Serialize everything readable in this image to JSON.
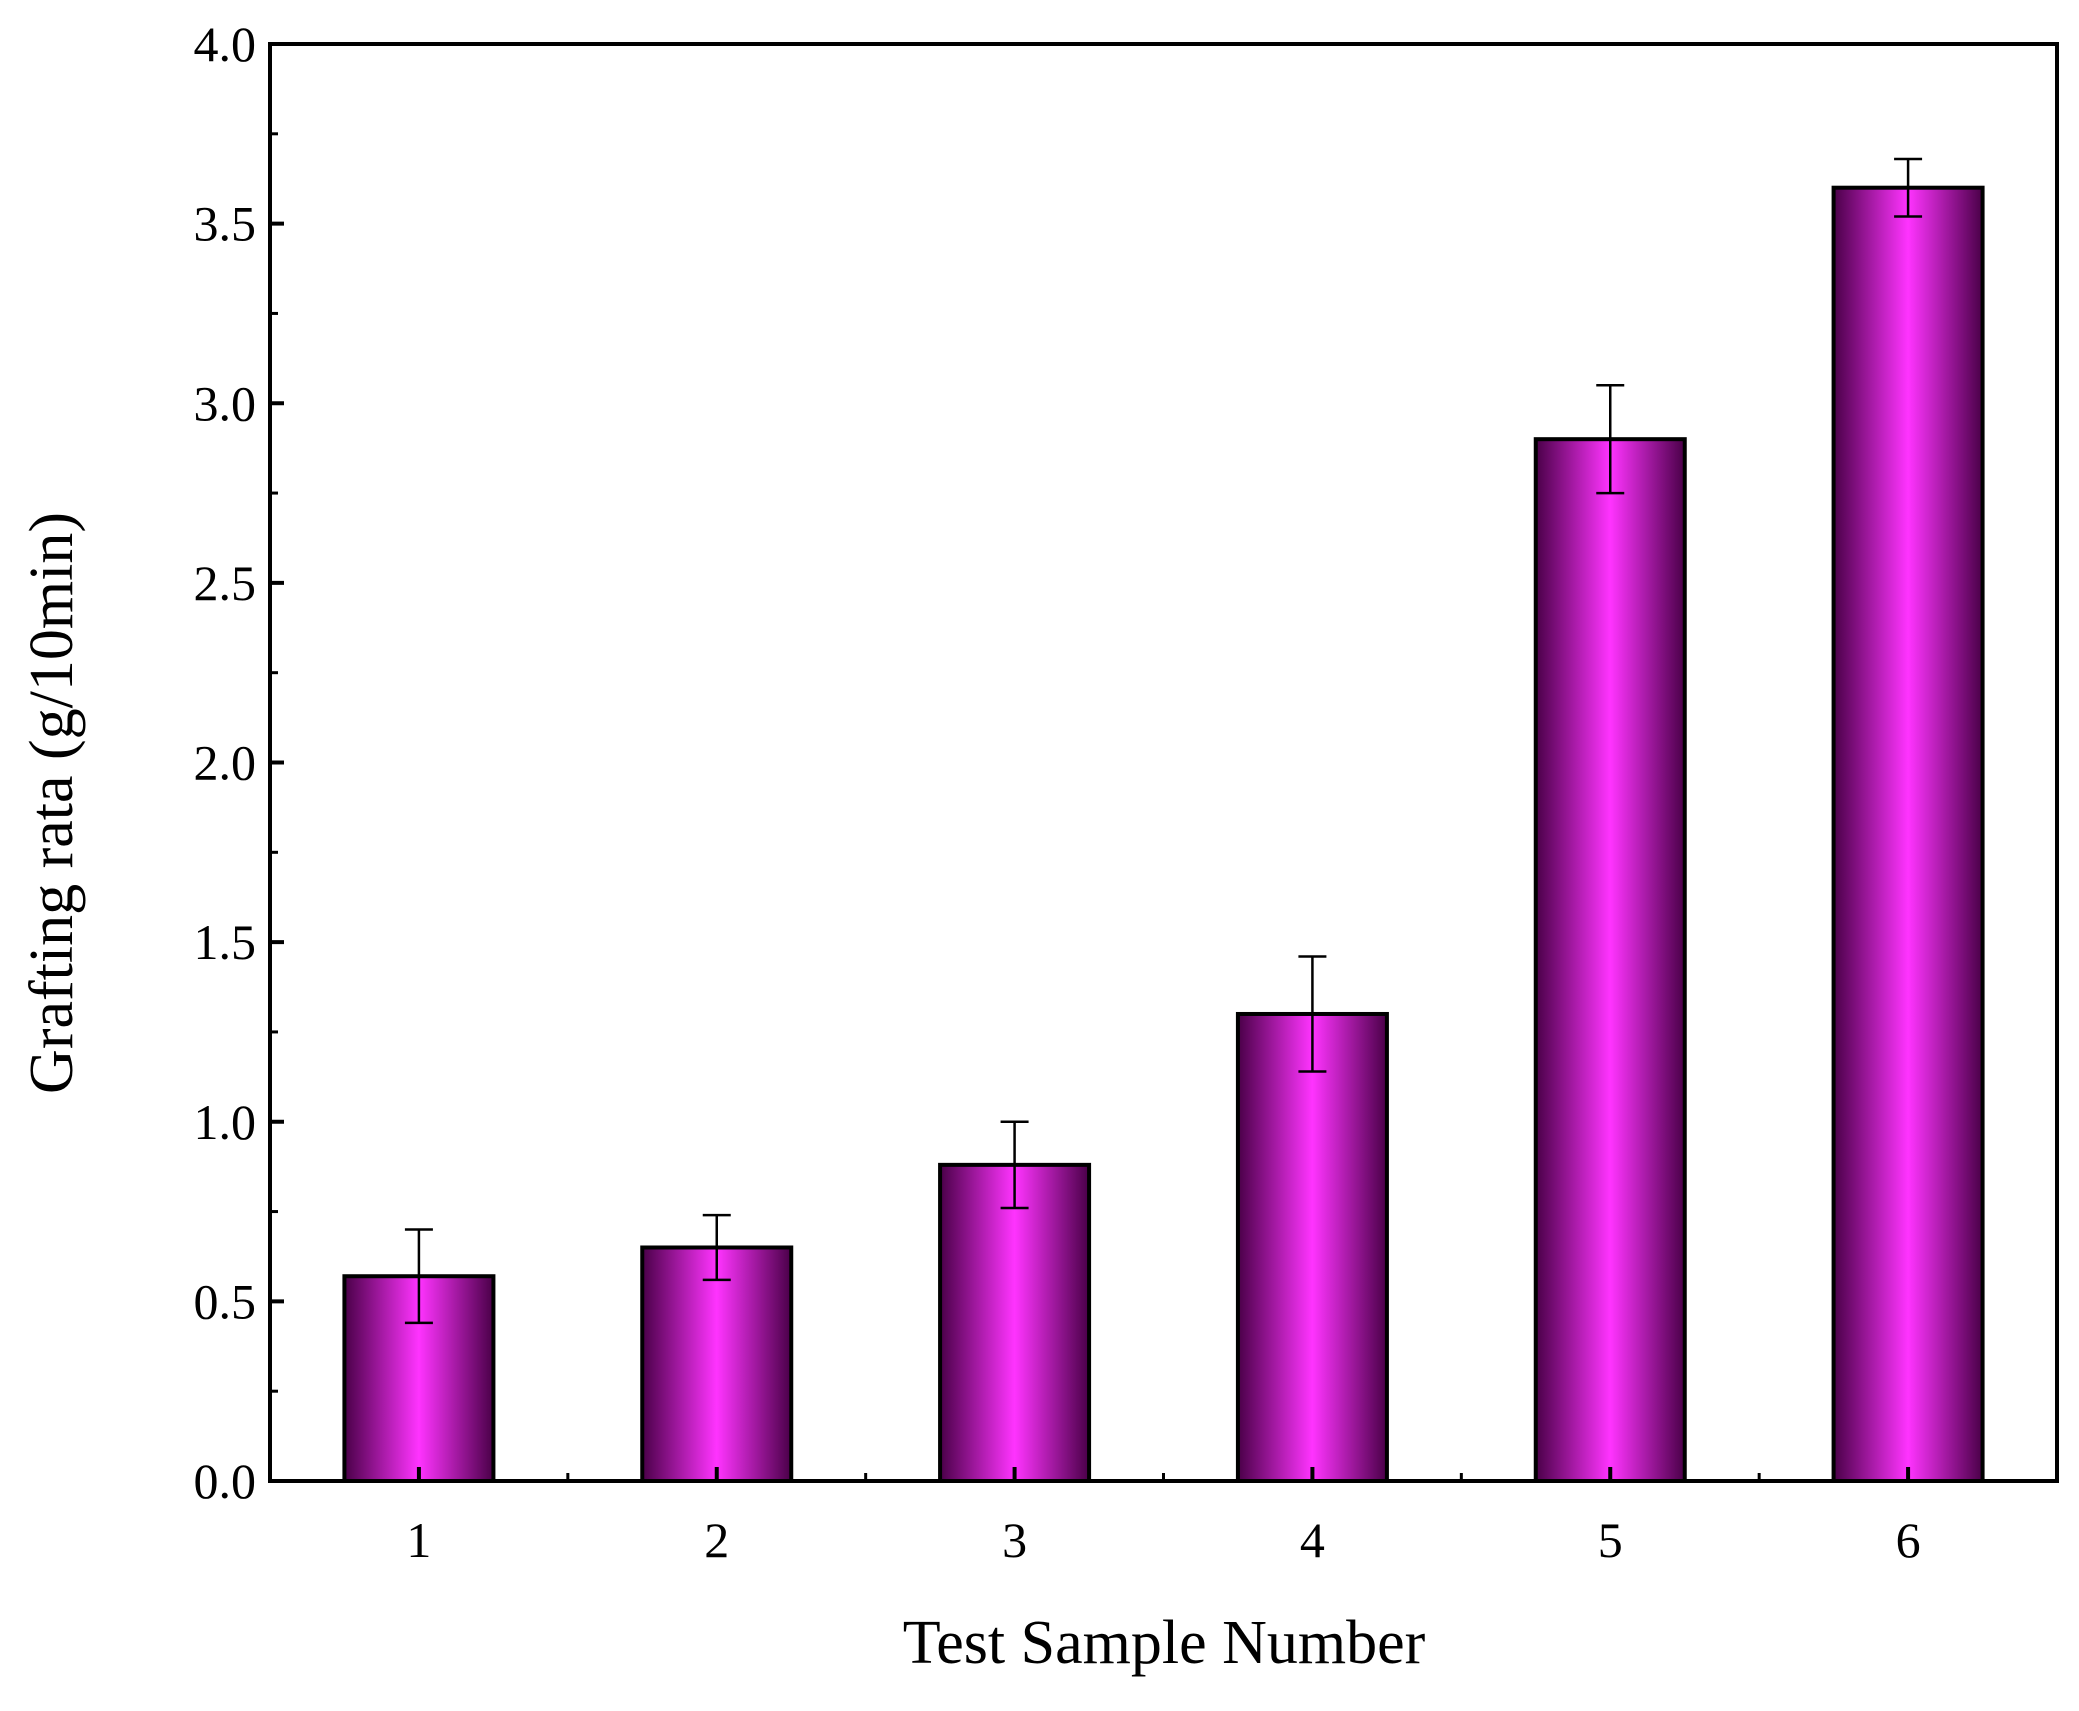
{
  "chart_data": {
    "type": "bar",
    "categories": [
      "1",
      "2",
      "3",
      "4",
      "5",
      "6"
    ],
    "values": [
      0.57,
      0.65,
      0.88,
      1.3,
      2.9,
      3.6
    ],
    "error_bars": [
      0.13,
      0.09,
      0.12,
      0.16,
      0.15,
      0.08
    ],
    "xlabel": "Test Sample Number",
    "ylabel": "Grafting rata (g/10min)",
    "ylim": [
      0,
      4.0
    ],
    "yticks": [
      "0.0",
      "0.5",
      "1.0",
      "1.5",
      "2.0",
      "2.5",
      "3.0",
      "3.5",
      "4.0"
    ],
    "grid": false,
    "colors": {
      "bar_center": "#ff33ff",
      "bar_edge": "#4a0048",
      "outline": "#000000"
    }
  }
}
